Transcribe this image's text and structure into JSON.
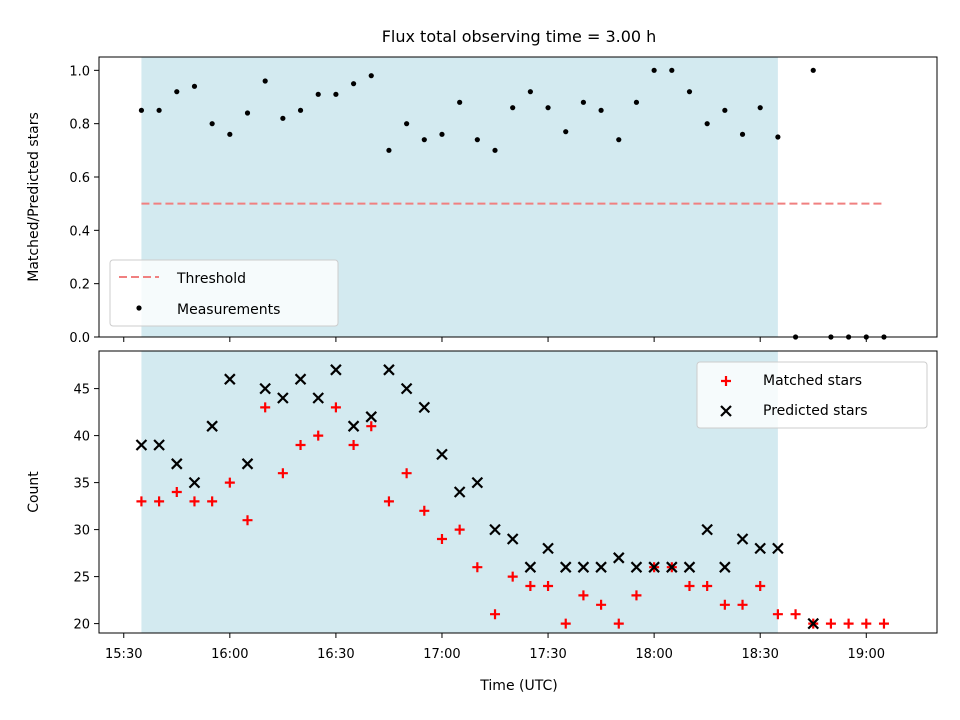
{
  "chart_data": {
    "title": "Flux total observing time = 3.00 h",
    "xlabel": "Time (UTC)",
    "x_ticks": [
      "15:30",
      "16:00",
      "16:30",
      "17:00",
      "17:30",
      "18:00",
      "18:30",
      "19:00"
    ],
    "observing_window": {
      "start": "15:35",
      "end": "18:35",
      "color": "#d3eaf0"
    },
    "panels": [
      {
        "type": "scatter",
        "ylabel": "Matched/Predicted stars",
        "ylim": [
          0,
          1.05
        ],
        "y_ticks": [
          "0.0",
          "0.2",
          "0.4",
          "0.6",
          "0.8",
          "1.0"
        ],
        "legend_placement": "lower-left",
        "threshold": {
          "name": "Threshold",
          "value": 0.5,
          "x_start": "15:35",
          "x_end": "19:05",
          "color": "#f08080"
        },
        "series": [
          {
            "name": "Measurements",
            "color": "#000000",
            "x": [
              "15:35",
              "15:40",
              "15:45",
              "15:50",
              "15:55",
              "16:00",
              "16:05",
              "16:10",
              "16:15",
              "16:20",
              "16:25",
              "16:30",
              "16:35",
              "16:40",
              "16:45",
              "16:50",
              "16:55",
              "17:00",
              "17:05",
              "17:10",
              "17:15",
              "17:20",
              "17:25",
              "17:30",
              "17:35",
              "17:40",
              "17:45",
              "17:50",
              "17:55",
              "18:00",
              "18:05",
              "18:10",
              "18:15",
              "18:20",
              "18:25",
              "18:30",
              "18:35",
              "18:40",
              "18:45",
              "18:50",
              "18:55",
              "19:00",
              "19:05"
            ],
            "y": [
              0.85,
              0.85,
              0.92,
              0.94,
              0.8,
              0.76,
              0.84,
              0.96,
              0.82,
              0.85,
              0.91,
              0.91,
              0.95,
              0.98,
              0.7,
              0.8,
              0.74,
              0.76,
              0.88,
              0.74,
              0.7,
              0.86,
              0.92,
              0.86,
              0.77,
              0.88,
              0.85,
              0.74,
              0.88,
              1.0,
              1.0,
              0.92,
              0.8,
              0.85,
              0.76,
              0.86,
              0.75,
              0.0,
              1.0,
              0.0,
              0.0,
              0.0,
              0.0
            ]
          }
        ]
      },
      {
        "type": "scatter",
        "ylabel": "Count",
        "ylim": [
          19,
          49
        ],
        "y_ticks": [
          "20",
          "25",
          "30",
          "35",
          "40",
          "45"
        ],
        "legend_placement": "upper-right",
        "series": [
          {
            "name": "Matched stars",
            "marker": "+",
            "color": "#ff0000",
            "x": [
              "15:35",
              "15:40",
              "15:45",
              "15:50",
              "15:55",
              "16:00",
              "16:05",
              "16:10",
              "16:15",
              "16:20",
              "16:25",
              "16:30",
              "16:35",
              "16:40",
              "16:45",
              "16:50",
              "16:55",
              "17:00",
              "17:05",
              "17:10",
              "17:15",
              "17:20",
              "17:25",
              "17:30",
              "17:35",
              "17:40",
              "17:45",
              "17:50",
              "17:55",
              "18:00",
              "18:05",
              "18:10",
              "18:15",
              "18:20",
              "18:25",
              "18:30",
              "18:35",
              "18:40",
              "18:45",
              "18:50",
              "18:55",
              "19:00",
              "19:05"
            ],
            "y": [
              33,
              33,
              34,
              33,
              33,
              35,
              31,
              43,
              36,
              39,
              40,
              43,
              39,
              41,
              33,
              36,
              32,
              29,
              30,
              26,
              21,
              25,
              24,
              24,
              20,
              23,
              22,
              20,
              23,
              26,
              26,
              24,
              24,
              22,
              22,
              24,
              21,
              21,
              20,
              20,
              20,
              20,
              20
            ]
          },
          {
            "name": "Predicted stars",
            "marker": "x",
            "color": "#000000",
            "x": [
              "15:35",
              "15:40",
              "15:45",
              "15:50",
              "15:55",
              "16:00",
              "16:05",
              "16:10",
              "16:15",
              "16:20",
              "16:25",
              "16:30",
              "16:35",
              "16:40",
              "16:45",
              "16:50",
              "16:55",
              "17:00",
              "17:05",
              "17:10",
              "17:15",
              "17:20",
              "17:25",
              "17:30",
              "17:35",
              "17:40",
              "17:45",
              "17:50",
              "17:55",
              "18:00",
              "18:05",
              "18:10",
              "18:15",
              "18:20",
              "18:25",
              "18:30",
              "18:35",
              "18:45"
            ],
            "y": [
              39,
              39,
              37,
              35,
              41,
              46,
              37,
              45,
              44,
              46,
              44,
              47,
              41,
              42,
              47,
              45,
              43,
              38,
              34,
              35,
              30,
              29,
              26,
              28,
              26,
              26,
              26,
              27,
              26,
              26,
              26,
              26,
              30,
              26,
              29,
              28,
              28,
              20
            ]
          }
        ]
      }
    ]
  }
}
